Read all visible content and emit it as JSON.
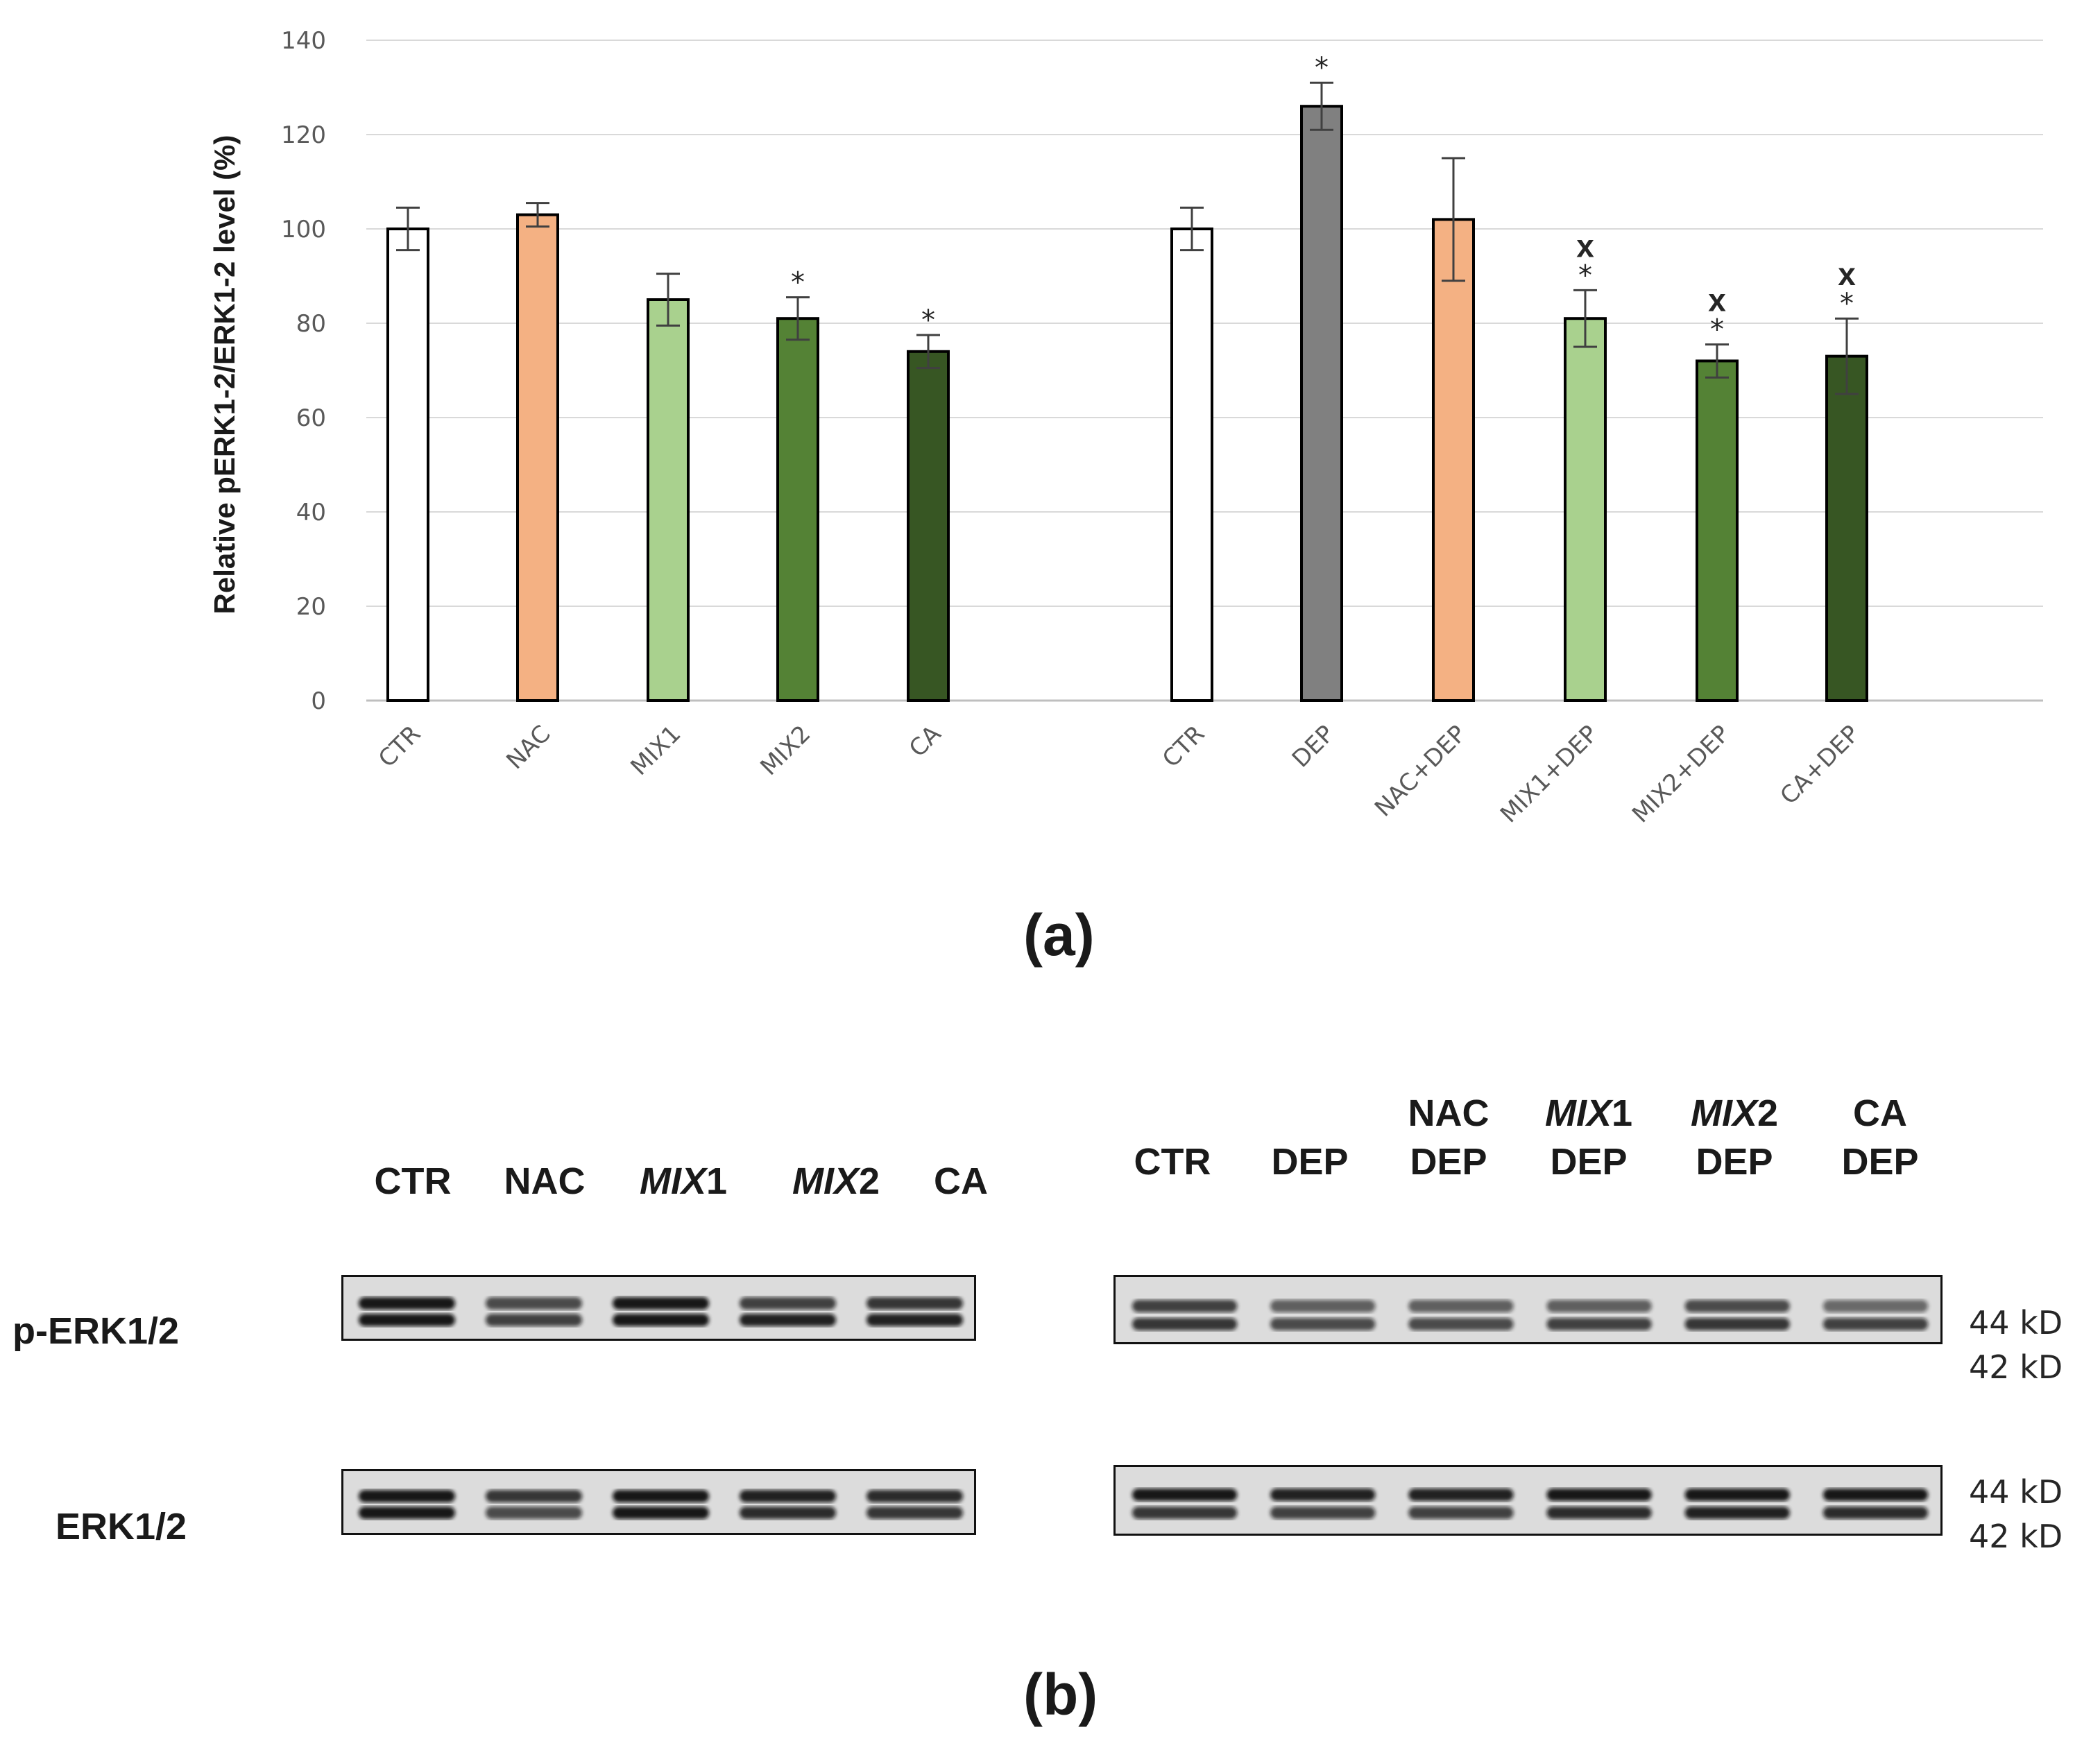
{
  "chart_data": {
    "type": "bar",
    "ylabel": "Relative pERK1-2/ERK1-2 level (%)",
    "ylim": [
      0,
      140
    ],
    "yticks": [
      "0",
      "20",
      "40",
      "60",
      "80",
      "100",
      "120",
      "140"
    ],
    "grid": true,
    "groups": [
      {
        "bars": [
          {
            "category": "CTR",
            "value": 100,
            "error": 4.5,
            "color": "#ffffff",
            "sig": ""
          },
          {
            "category": "NAC",
            "value": 103,
            "error": 2.5,
            "color": "#f4b183",
            "sig": ""
          },
          {
            "category": "MIX1",
            "value": 85,
            "error": 5.5,
            "color": "#a9d18e",
            "sig": ""
          },
          {
            "category": "MIX2",
            "value": 81,
            "error": 4.5,
            "color": "#548235",
            "sig": "*"
          },
          {
            "category": "CA",
            "value": 74,
            "error": 3.5,
            "color": "#375623",
            "sig": "*"
          }
        ]
      },
      {
        "bars": [
          {
            "category": "CTR",
            "value": 100,
            "error": 4.5,
            "color": "#ffffff",
            "sig": ""
          },
          {
            "category": "DEP",
            "value": 126,
            "error": 5.0,
            "color": "#808080",
            "sig": "*"
          },
          {
            "category": "NAC+DEP",
            "value": 102,
            "error": 13.0,
            "color": "#f4b183",
            "sig": ""
          },
          {
            "category": "MIX1+DEP",
            "value": 81,
            "error": 6.0,
            "color": "#a9d18e",
            "sig": "*",
            "sig2": "x"
          },
          {
            "category": "MIX2+DEP",
            "value": 72,
            "error": 3.5,
            "color": "#548235",
            "sig": "*",
            "sig2": "x"
          },
          {
            "category": "CA+DEP",
            "value": 73,
            "error": 8.0,
            "color": "#375623",
            "sig": "*",
            "sig2": "x"
          }
        ]
      }
    ]
  },
  "panel_a_label": "(a)",
  "panel_b_label": "(b)",
  "blot": {
    "left_lanes": [
      {
        "main": "CTR",
        "italic": "",
        "suffix": ""
      },
      {
        "main": "NAC",
        "italic": "",
        "suffix": ""
      },
      {
        "main": "",
        "italic": "MIX",
        "suffix": "1"
      },
      {
        "main": "",
        "italic": "MIX",
        "suffix": "2"
      },
      {
        "main": "CA",
        "italic": "",
        "suffix": ""
      }
    ],
    "right_lanes": [
      {
        "top": "",
        "top_italic": "",
        "top_suffix": "",
        "bottom": "CTR"
      },
      {
        "top": "",
        "top_italic": "",
        "top_suffix": "",
        "bottom": "DEP"
      },
      {
        "top": "NAC",
        "top_italic": "",
        "top_suffix": "",
        "bottom": "DEP"
      },
      {
        "top": "",
        "top_italic": "MIX",
        "top_suffix": "1",
        "bottom": "DEP"
      },
      {
        "top": "",
        "top_italic": "MIX",
        "top_suffix": "2",
        "bottom": "DEP"
      },
      {
        "top": "CA",
        "top_italic": "",
        "top_suffix": "",
        "bottom": "DEP"
      }
    ],
    "rows": [
      "p-ERK1/2",
      "ERK1/2"
    ],
    "kd_upper": "44 kD",
    "kd_lower": "42 kD"
  }
}
